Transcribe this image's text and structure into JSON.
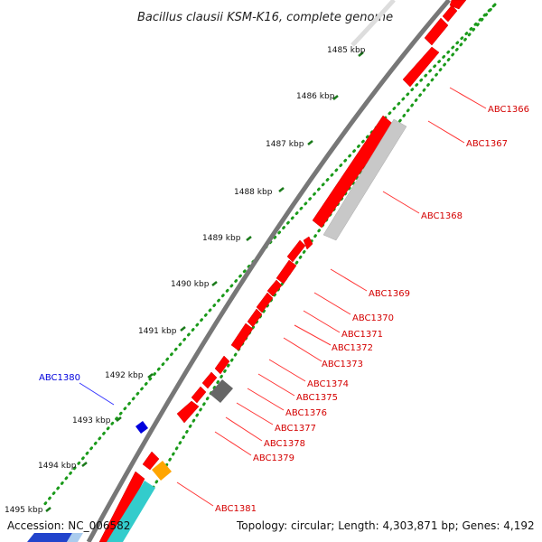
{
  "title": "Bacillus clausii KSM-K16, complete genome",
  "footer": {
    "accession": "Accession: NC_006582",
    "summary": "Topology: circular; Length: 4,303,871 bp; Genes: 4,192"
  },
  "colors": {
    "forward_gene": "#ff0000",
    "reverse_gene": "#c0c0c0",
    "backbone": "#777777",
    "tick_dots": "#1a9a1a",
    "label_red": "#d40000",
    "label_blue": "#0000dd"
  },
  "ticks": [
    {
      "label": "1485 kbp"
    },
    {
      "label": "1486 kbp"
    },
    {
      "label": "1487 kbp"
    },
    {
      "label": "1488 kbp"
    },
    {
      "label": "1489 kbp"
    },
    {
      "label": "1490 kbp"
    },
    {
      "label": "1491 kbp"
    },
    {
      "label": "1492 kbp"
    },
    {
      "label": "1493 kbp"
    },
    {
      "label": "1494 kbp"
    },
    {
      "label": "1495 kbp"
    }
  ],
  "gene_labels": [
    {
      "name": "ABC1366",
      "color": "red"
    },
    {
      "name": "ABC1367",
      "color": "red"
    },
    {
      "name": "ABC1368",
      "color": "red"
    },
    {
      "name": "ABC1369",
      "color": "red"
    },
    {
      "name": "ABC1370",
      "color": "red"
    },
    {
      "name": "ABC1371",
      "color": "red"
    },
    {
      "name": "ABC1372",
      "color": "red"
    },
    {
      "name": "ABC1373",
      "color": "red"
    },
    {
      "name": "ABC1374",
      "color": "red"
    },
    {
      "name": "ABC1375",
      "color": "red"
    },
    {
      "name": "ABC1376",
      "color": "red"
    },
    {
      "name": "ABC1377",
      "color": "red"
    },
    {
      "name": "ABC1378",
      "color": "red"
    },
    {
      "name": "ABC1379",
      "color": "red"
    },
    {
      "name": "ABC1381",
      "color": "red"
    },
    {
      "name": "ABC1380",
      "color": "blue"
    }
  ]
}
